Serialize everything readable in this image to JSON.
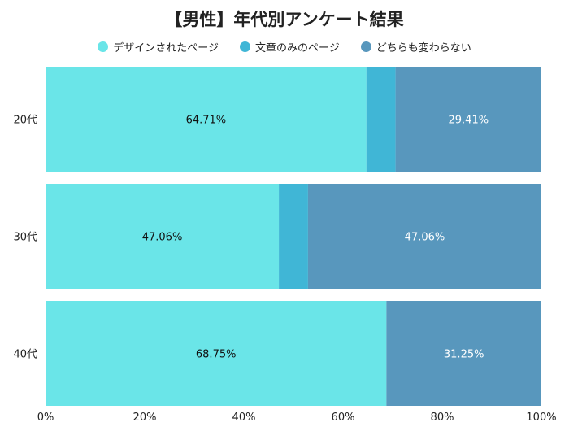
{
  "chart_data": {
    "type": "bar",
    "orientation": "horizontal",
    "stacked": true,
    "title": "【男性】年代別アンケート結果",
    "categories": [
      "20代",
      "30代",
      "40代"
    ],
    "series": [
      {
        "name": "デザインされたページ",
        "color": "#6ae5e8",
        "values": [
          64.71,
          47.06,
          68.75
        ],
        "labels": [
          "64.71%",
          "47.06%",
          "68.75%"
        ]
      },
      {
        "name": "文章のみのページ",
        "color": "#40b6d6",
        "values": [
          5.88,
          5.88,
          0
        ],
        "labels": [
          "",
          "",
          ""
        ]
      },
      {
        "name": "どちらも変わらない",
        "color": "#5897bd",
        "values": [
          29.41,
          47.06,
          31.25
        ],
        "labels": [
          "29.41%",
          "47.06%",
          "31.25%"
        ]
      }
    ],
    "xlim": [
      0,
      100
    ],
    "xticks": [
      "0%",
      "20%",
      "40%",
      "60%",
      "80%",
      "100%"
    ],
    "legend_position": "top",
    "grid": false
  }
}
